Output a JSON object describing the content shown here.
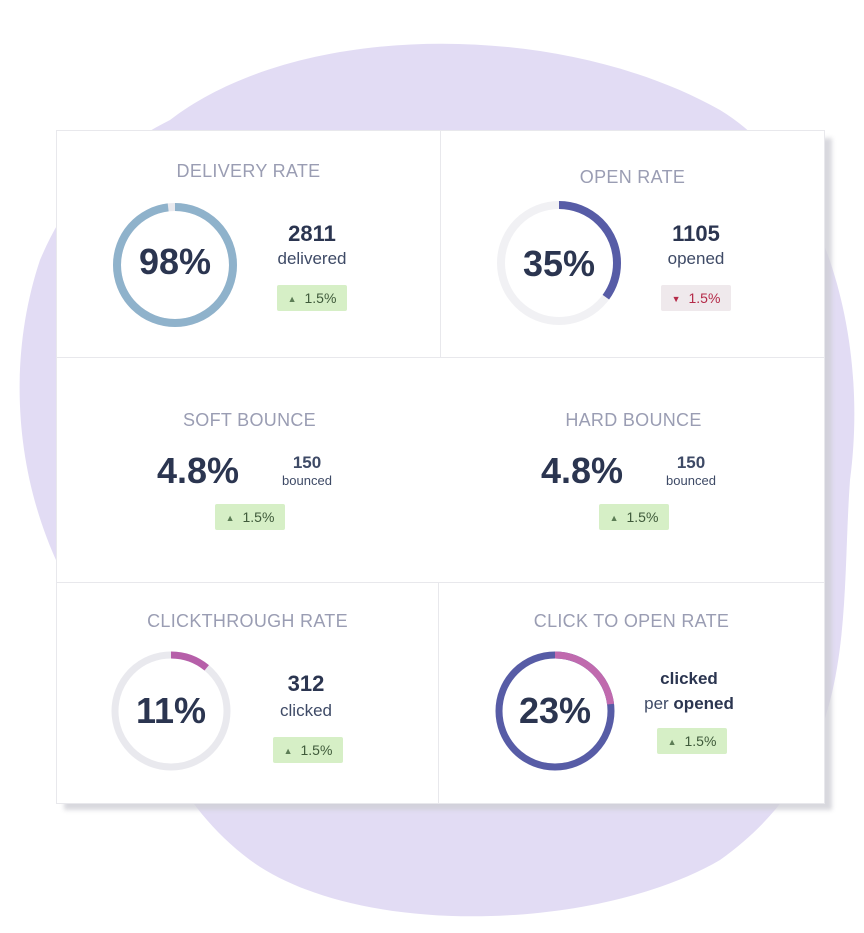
{
  "colors": {
    "blob": "#e2dcf4",
    "delivery_ring": "#8fb2cb",
    "open_ring": "#575ca6",
    "clickthrough_ring": "#b65fa9",
    "c2o_ring_base": "#575ca6",
    "c2o_ring_fill": "#c06aae",
    "track": "#e9e9ee",
    "up_badge": "#d6efc6",
    "down_badge": "#efe9ec"
  },
  "cards": {
    "delivery": {
      "title": "DELIVERY RATE",
      "percent_label": "98%",
      "percent_value": 98,
      "count": "2811",
      "unit": "delivered",
      "badge": {
        "direction": "up",
        "icon": "triangle-up-icon",
        "text": "1.5%"
      }
    },
    "open": {
      "title": "OPEN RATE",
      "percent_label": "35%",
      "percent_value": 35,
      "count": "1105",
      "unit": "opened",
      "badge": {
        "direction": "down",
        "icon": "triangle-down-icon",
        "text": "1.5%"
      }
    },
    "soft_bounce": {
      "title": "SOFT BOUNCE",
      "percent_label": "4.8%",
      "count": "150",
      "unit": "bounced",
      "badge": {
        "direction": "up",
        "icon": "triangle-up-icon",
        "text": "1.5%"
      }
    },
    "hard_bounce": {
      "title": "HARD BOUNCE",
      "percent_label": "4.8%",
      "count": "150",
      "unit": "bounced",
      "badge": {
        "direction": "up",
        "icon": "triangle-up-icon",
        "text": "1.5%"
      }
    },
    "clickthrough": {
      "title": "CLICKTHROUGH RATE",
      "percent_label": "11%",
      "percent_value": 11,
      "count": "312",
      "unit": "clicked",
      "badge": {
        "direction": "up",
        "icon": "triangle-up-icon",
        "text": "1.5%"
      }
    },
    "click_to_open": {
      "title": "CLICK TO OPEN RATE",
      "percent_label": "23%",
      "percent_value": 23,
      "line1": "clicked",
      "line2_prefix": "per",
      "line2_bold": "opened",
      "badge": {
        "direction": "up",
        "icon": "triangle-up-icon",
        "text": "1.5%"
      }
    }
  }
}
